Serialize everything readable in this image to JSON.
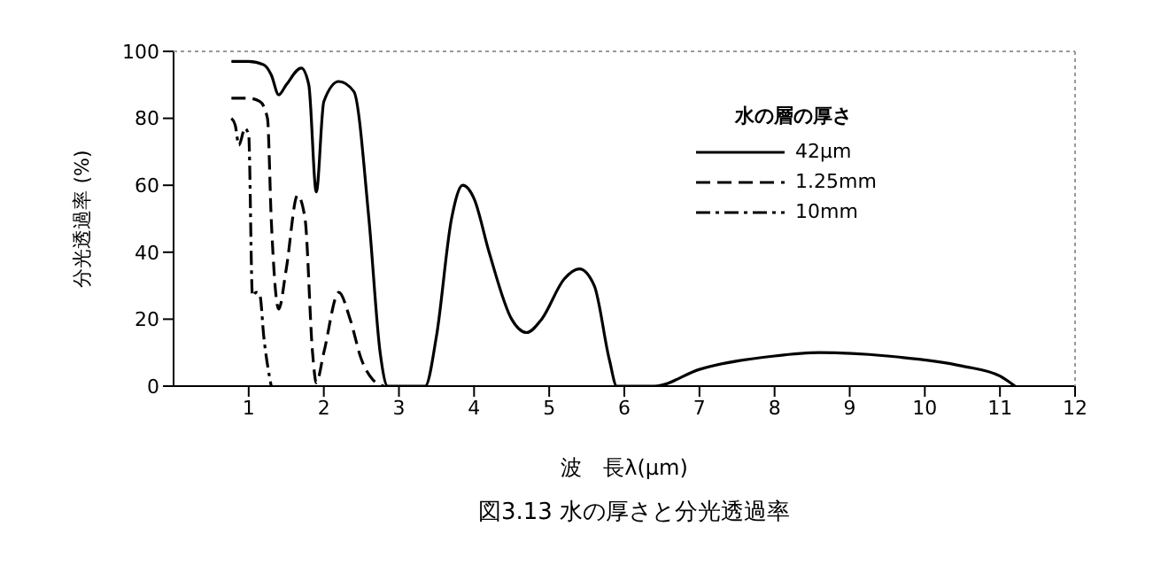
{
  "chart_data": {
    "type": "line",
    "title": "図3.13 水の厚さと分光透過率",
    "xlabel": "波　長λ(μm)",
    "ylabel": "分光透過率 (%)",
    "legend_title": "水の層の厚さ",
    "legend": "top right",
    "grid": false,
    "xlim": [
      0,
      12
    ],
    "xticks": [
      1,
      2,
      3,
      4,
      5,
      6,
      7,
      8,
      9,
      10,
      11,
      12
    ],
    "ylim": [
      0,
      100
    ],
    "yticks": [
      0,
      20,
      40,
      60,
      80,
      100
    ],
    "series": [
      {
        "name": "42μm",
        "color": "#000000",
        "line_style": "solid",
        "x": [
          0.77,
          1.0,
          1.2,
          1.3,
          1.4,
          1.5,
          1.7,
          1.8,
          1.9,
          2.0,
          2.2,
          2.4,
          2.6,
          2.75,
          2.85,
          3.35,
          3.5,
          3.7,
          3.85,
          4.0,
          4.2,
          4.5,
          4.7,
          4.9,
          5.2,
          5.4,
          5.6,
          5.8,
          5.9,
          6.4,
          7.0,
          8.0,
          8.6,
          9.5,
          10.5,
          11.0,
          11.2
        ],
        "values": [
          97,
          97,
          96,
          93,
          87,
          90,
          95,
          90,
          58,
          85,
          91,
          88,
          50,
          10,
          0,
          0,
          15,
          50,
          60,
          56,
          40,
          20,
          16,
          20,
          32,
          35,
          30,
          8,
          0,
          0,
          5,
          9,
          10,
          9,
          6,
          3,
          0
        ]
      },
      {
        "name": "1.25mm",
        "color": "#000000",
        "line_style": "dashed",
        "x": [
          0.77,
          1.0,
          1.15,
          1.25,
          1.3,
          1.4,
          1.5,
          1.65,
          1.75,
          1.85,
          1.9,
          2.0,
          2.2,
          2.35,
          2.5,
          2.65,
          2.8
        ],
        "values": [
          86,
          86,
          85,
          80,
          50,
          23,
          35,
          57,
          50,
          10,
          1,
          10,
          28,
          20,
          8,
          2,
          0
        ]
      },
      {
        "name": "10mm",
        "color": "#000000",
        "line_style": "dotted",
        "x": [
          0.77,
          0.82,
          0.87,
          0.95,
          1.0,
          1.05,
          1.1,
          1.15,
          1.2,
          1.3
        ],
        "values": [
          80,
          78,
          72,
          77,
          75,
          27,
          28,
          27,
          15,
          0
        ]
      }
    ]
  }
}
